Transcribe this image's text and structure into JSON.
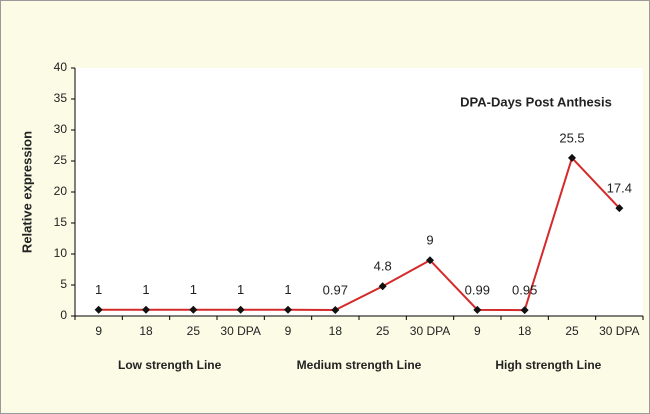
{
  "chart_data": {
    "type": "line",
    "annotation": "DPA-Days Post Anthesis",
    "y_label": "Relative expression",
    "categories": [
      "9",
      "18",
      "25",
      "30 DPA",
      "9",
      "18",
      "25",
      "30 DPA",
      "9",
      "18",
      "25",
      "30 DPA"
    ],
    "groups": [
      "Low strength Line",
      "Medium strength Line",
      "High strength Line"
    ],
    "values": [
      1,
      1,
      1,
      1,
      1,
      0.97,
      4.8,
      9,
      0.99,
      0.95,
      25.5,
      17.4
    ],
    "color": "#d42a2a",
    "marker_color": "#111111",
    "ylim": [
      0,
      40
    ],
    "yticks": [
      0,
      5,
      10,
      15,
      20,
      25,
      30,
      35,
      40
    ]
  }
}
